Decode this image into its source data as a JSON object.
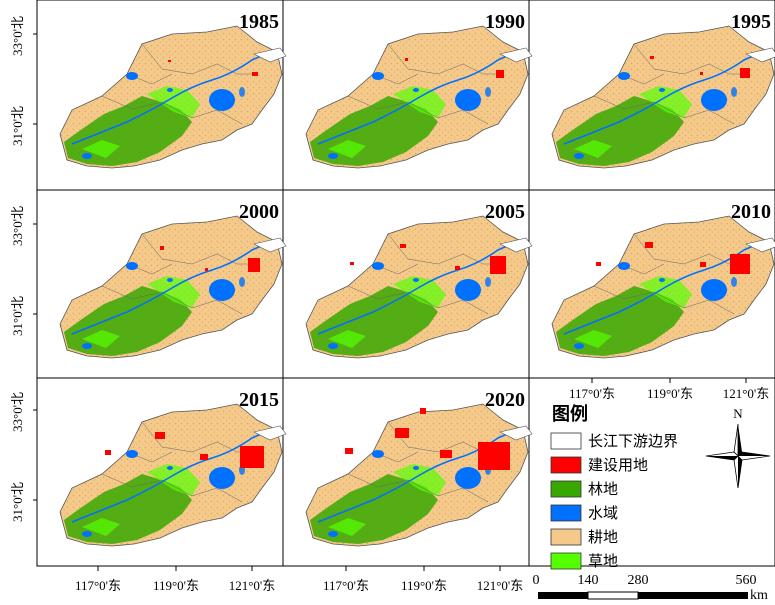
{
  "panels": [
    {
      "year": "1985"
    },
    {
      "year": "1990"
    },
    {
      "year": "1995"
    },
    {
      "year": "2000"
    },
    {
      "year": "2005"
    },
    {
      "year": "2010"
    },
    {
      "year": "2015"
    },
    {
      "year": "2020"
    }
  ],
  "lat_labels": [
    "33°0'北",
    "31°0'北"
  ],
  "lon_labels": [
    "117°0'东",
    "119°0'东",
    "121°0'东"
  ],
  "legend": {
    "title": "图例",
    "items": [
      {
        "label": "长江下游边界",
        "color": "#ffffff"
      },
      {
        "label": "建设用地",
        "color": "#ff0000"
      },
      {
        "label": "林地",
        "color": "#38a800"
      },
      {
        "label": "水域",
        "color": "#0070ff"
      },
      {
        "label": "耕地",
        "color": "#f5c98a"
      },
      {
        "label": "草地",
        "color": "#55ff00"
      }
    ]
  },
  "north_arrow": {
    "label": "N"
  },
  "scale_bar": {
    "ticks": [
      "0",
      "140",
      "280",
      "560"
    ],
    "unit": "km"
  }
}
